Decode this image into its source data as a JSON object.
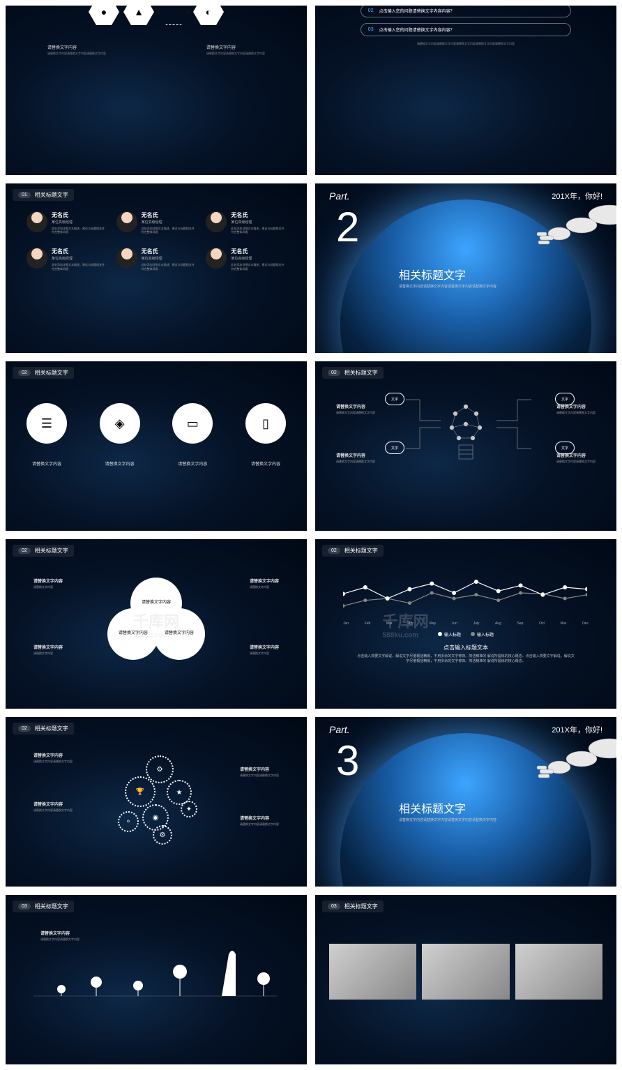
{
  "colors": {
    "slide_bg": "#051226",
    "accent": "#5eb3ff",
    "white": "#ffffff",
    "grey": "#999999"
  },
  "watermark": {
    "main": "千库网",
    "sub": "588ku.com"
  },
  "badges": {
    "b01": "01",
    "b02": "02",
    "b03": "03",
    "title": "相关标题文字"
  },
  "slide1": {
    "hex_icons": [
      "●",
      "📊",
      "👤",
      "📈"
    ],
    "label_left": "请替换文字内容",
    "label_right": "请替换文字内容",
    "desc_left": "请替换文字内容请替换文字内容请替换文字内容",
    "desc_right": "请替换文字内容请替换文字内容请替换文字内容"
  },
  "slide2": {
    "q2_num": "02",
    "q2_text": "点击输入您的问题请替换文字内容内容？",
    "q3_num": "03",
    "q3_text": "点击输入您的问题请替换文字内容内容？",
    "bottom_text": "请替换文字内容请替换文字内容请替换文字内容请替换文字内容请替换文字内容"
  },
  "slide3": {
    "people": [
      {
        "name": "无名氏",
        "sub": "某位高级经理",
        "desc": "此处添加详细文本描述，建议与标题相关并符合整体风格"
      },
      {
        "name": "无名氏",
        "sub": "某位高级经理",
        "desc": "此处添加详细文本描述，建议与标题相关并符合整体风格"
      },
      {
        "name": "无名氏",
        "sub": "某位高级经理",
        "desc": "此处添加详细文本描述，建议与标题相关并符合整体风格"
      },
      {
        "name": "无名氏",
        "sub": "某位高级经理",
        "desc": "此处添加详细文本描述，建议与标题相关并符合整体风格"
      },
      {
        "name": "无名氏",
        "sub": "某位高级经理",
        "desc": "此处添加详细文本描述，建议与标题相关并符合整体风格"
      },
      {
        "name": "无名氏",
        "sub": "某位高级经理",
        "desc": "此处添加详细文本描述，建议与标题相关并符合整体风格"
      }
    ]
  },
  "part2": {
    "label": "Part.",
    "year": "201X年，你好!",
    "num": "2",
    "title": "相关标题文字",
    "desc": "请替换文字内容请替换文字内容请替换文字内容请替换文字内容"
  },
  "part3": {
    "label": "Part.",
    "year": "201X年，你好!",
    "num": "3",
    "title": "相关标题文字",
    "desc": "请替换文字内容请替换文字内容请替换文字内容请替换文字内容"
  },
  "slide5": {
    "icons": [
      "☰",
      "◈",
      "▭",
      "▯"
    ],
    "labels": [
      "请替换文字内容",
      "请替换文字内容",
      "请替换文字内容",
      "请替换文字内容"
    ]
  },
  "slide6": {
    "tag": "文字",
    "left1": "请替换文字内容",
    "left1_desc": "请替换文字内容请替换文字内容",
    "left2": "请替换文字内容",
    "left2_desc": "请替换文字内容请替换文字内容",
    "right1": "请替换文字内容",
    "right1_desc": "请替换文字内容请替换文字内容",
    "right2": "请替换文字内容",
    "right2_desc": "请替换文字内容请替换文字内容"
  },
  "slide7": {
    "venn_text": "请替换文字内容",
    "tl": "请替换文字内容",
    "tl_desc": "请替换文字内容",
    "tr": "请替换文字内容",
    "tr_desc": "请替换文字内容",
    "bl": "请替换文字内容",
    "bl_desc": "请替换文字内容",
    "br": "请替换文字内容",
    "br_desc": "请替换文字内容"
  },
  "slide8": {
    "months": [
      "Jan",
      "Feb",
      "Mar",
      "Apr",
      "May",
      "Jun",
      "July",
      "Aug",
      "Sep",
      "Oct",
      "Nov",
      "Dec"
    ],
    "series1": {
      "label": "输入标题",
      "color": "#ffffff",
      "values": [
        35,
        42,
        30,
        40,
        46,
        36,
        48,
        38,
        44,
        34,
        42,
        40
      ]
    },
    "series2": {
      "label": "输入标题",
      "color": "#888888",
      "values": [
        22,
        28,
        30,
        25,
        36,
        30,
        34,
        28,
        36,
        35,
        30,
        34
      ]
    },
    "title": "点击输入标题文本",
    "desc": "点击输入简要文字解说，解说文字尽量概括精炼，不用多余的文字修饰。简洁精准的 解说所提炼的核心概念。点击输入简要文字解说，解说文字尽量概括精炼，不用多余的文字修饰。简洁精准的 解说所提炼的核心概念。",
    "ylim": [
      0,
      60
    ]
  },
  "slide9": {
    "lbls": [
      {
        "t": "请替换文字内容",
        "d": "请替换文字内容请替换文字内容"
      },
      {
        "t": "请替换文字内容",
        "d": "请替换文字内容请替换文字内容"
      },
      {
        "t": "请替换文字内容",
        "d": "请替换文字内容请替换文字内容"
      },
      {
        "t": "请替换文字内容",
        "d": "请替换文字内容请替换文字内容"
      }
    ]
  },
  "slide11": {
    "label": "请替换文字内容",
    "desc": "请替换文字内容请替换文字内容"
  }
}
